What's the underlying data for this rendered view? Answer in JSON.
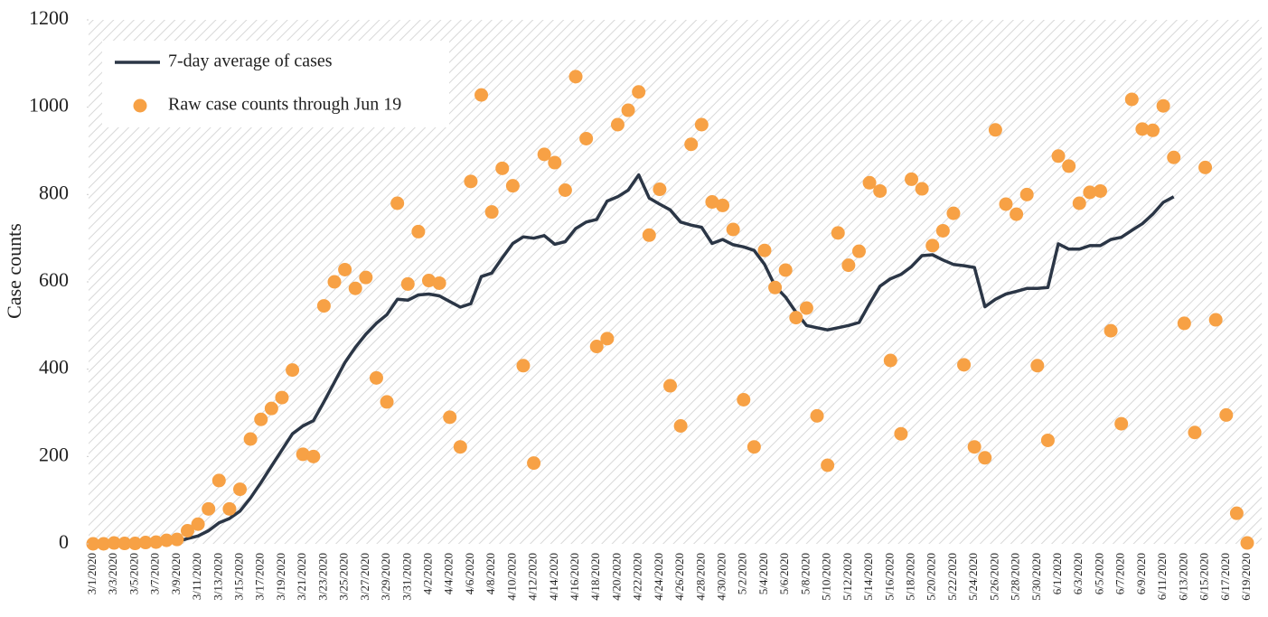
{
  "chart_data": {
    "type": "line",
    "y_label": "Case counts",
    "legend": "upper left",
    "grid": false,
    "ylim": [
      0,
      1200
    ],
    "yticks": [
      0,
      200,
      400,
      600,
      800,
      1000,
      1200
    ],
    "categories": [
      "3/1/2020",
      null,
      "3/3/2020",
      null,
      "3/5/2020",
      null,
      "3/7/2020",
      null,
      "3/9/2020",
      null,
      "3/11/2020",
      null,
      "3/13/2020",
      null,
      "3/15/2020",
      null,
      "3/17/2020",
      null,
      "3/19/2020",
      null,
      "3/21/2020",
      null,
      "3/23/2020",
      null,
      "3/25/2020",
      null,
      "3/27/2020",
      null,
      "3/29/2020",
      null,
      "3/31/2020",
      null,
      "4/2/2020",
      null,
      "4/4/2020",
      null,
      "4/6/2020",
      null,
      "4/8/2020",
      null,
      "4/10/2020",
      null,
      "4/12/2020",
      null,
      "4/14/2020",
      null,
      "4/16/2020",
      null,
      "4/18/2020",
      null,
      "4/20/2020",
      null,
      "4/22/2020",
      null,
      "4/24/2020",
      null,
      "4/26/2020",
      null,
      "4/28/2020",
      null,
      "4/30/2020",
      null,
      "5/2/2020",
      null,
      "5/4/2020",
      null,
      "5/6/2020",
      null,
      "5/8/2020",
      null,
      "5/10/2020",
      null,
      "5/12/2020",
      null,
      "5/14/2020",
      null,
      "5/16/2020",
      null,
      "5/18/2020",
      null,
      "5/20/2020",
      null,
      "5/22/2020",
      null,
      "5/24/2020",
      null,
      "5/26/2020",
      null,
      "5/28/2020",
      null,
      "5/30/2020",
      null,
      "6/1/2020",
      null,
      "6/3/2020",
      null,
      "6/5/2020",
      null,
      "6/7/2020",
      null,
      "6/9/2020",
      null,
      "6/11/2020",
      null,
      "6/13/2020",
      null,
      "6/15/2020",
      null,
      "6/17/2020",
      null,
      "6/19/2020"
    ],
    "series": [
      {
        "name": "7-day average of cases",
        "type": "line",
        "color": "#2b3646",
        "values": [
          null,
          null,
          null,
          null,
          null,
          null,
          null,
          null,
          5,
          12,
          18,
          30,
          48,
          58,
          75,
          105,
          140,
          178,
          215,
          252,
          270,
          282,
          325,
          370,
          415,
          450,
          480,
          505,
          525,
          560,
          558,
          570,
          572,
          568,
          555,
          542,
          550,
          612,
          620,
          655,
          688,
          703,
          700,
          706,
          686,
          692,
          722,
          737,
          743,
          785,
          795,
          810,
          845,
          792,
          778,
          765,
          737,
          730,
          725,
          688,
          697,
          685,
          680,
          672,
          640,
          590,
          565,
          530,
          500,
          495,
          490,
          495,
          500,
          507,
          550,
          590,
          607,
          617,
          635,
          660,
          662,
          650,
          640,
          637,
          633,
          543,
          560,
          572,
          578,
          585,
          585,
          587,
          687,
          675,
          675,
          683,
          683,
          697,
          702,
          718,
          733,
          755,
          782,
          795,
          null,
          null,
          null,
          null,
          null,
          null,
          null
        ]
      },
      {
        "name": "Raw case counts through Jun 19",
        "type": "scatter",
        "color": "#f7a145",
        "values": [
          0,
          0,
          2,
          1,
          1,
          3,
          4,
          8,
          10,
          30,
          45,
          80,
          145,
          80,
          125,
          240,
          285,
          310,
          335,
          398,
          205,
          200,
          545,
          600,
          628,
          585,
          610,
          380,
          325,
          780,
          595,
          715,
          603,
          597,
          290,
          222,
          830,
          1028,
          760,
          860,
          820,
          408,
          185,
          892,
          873,
          810,
          1070,
          928,
          452,
          470,
          960,
          993,
          1035,
          707,
          812,
          362,
          270,
          915,
          960,
          783,
          775,
          720,
          330,
          222,
          672,
          587,
          627,
          518,
          540,
          293,
          180,
          712,
          638,
          670,
          827,
          808,
          420,
          252,
          835,
          813,
          683,
          717,
          757,
          410,
          222,
          197,
          948,
          778,
          755,
          800,
          408,
          237,
          888,
          865,
          780,
          805,
          808,
          488,
          275,
          1018,
          950,
          947,
          1003,
          885,
          505,
          255,
          862,
          513,
          295,
          70,
          2
        ]
      }
    ]
  }
}
